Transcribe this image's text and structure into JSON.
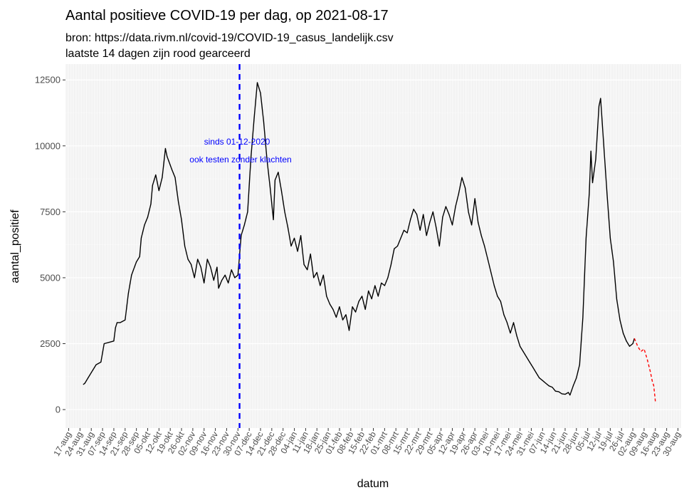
{
  "chart_data": {
    "type": "line",
    "title": "Aantal positieve COVID-19 per dag, op 2021-08-17",
    "subtitle_lines": [
      "bron: https://data.rivm.nl/covid-19/COVID-19_casus_landelijk.csv",
      "laatste 14 dagen zijn rood gearceerd"
    ],
    "xlabel": "datum",
    "ylabel": "aantal_positief",
    "x_range": [
      "2020-08-15",
      "2021-09-01"
    ],
    "ylim": [
      -700,
      13100
    ],
    "y_ticks": [
      0,
      2500,
      5000,
      7500,
      10000,
      12500
    ],
    "y_tick_labels": [
      "0",
      "2500",
      "5000",
      "7500",
      "10000",
      "12500"
    ],
    "x_tick_dates": [
      "2020-08-17",
      "2020-08-24",
      "2020-08-31",
      "2020-09-07",
      "2020-09-14",
      "2020-09-21",
      "2020-09-28",
      "2020-10-05",
      "2020-10-12",
      "2020-10-19",
      "2020-10-26",
      "2020-11-02",
      "2020-11-09",
      "2020-11-16",
      "2020-11-23",
      "2020-11-30",
      "2020-12-07",
      "2020-12-14",
      "2020-12-21",
      "2020-12-28",
      "2021-01-04",
      "2021-01-11",
      "2021-01-18",
      "2021-01-25",
      "2021-02-01",
      "2021-02-08",
      "2021-02-15",
      "2021-02-22",
      "2021-03-01",
      "2021-03-08",
      "2021-03-15",
      "2021-03-22",
      "2021-03-29",
      "2021-04-05",
      "2021-04-12",
      "2021-04-19",
      "2021-04-26",
      "2021-05-03",
      "2021-05-10",
      "2021-05-17",
      "2021-05-24",
      "2021-05-31",
      "2021-06-07",
      "2021-06-14",
      "2021-06-21",
      "2021-06-28",
      "2021-07-05",
      "2021-07-12",
      "2021-07-19",
      "2021-07-26",
      "2021-08-02",
      "2021-08-09",
      "2021-08-16",
      "2021-08-23",
      "2021-08-30"
    ],
    "x_tick_labels": [
      "17-aug",
      "24-aug",
      "31-aug",
      "07-sep",
      "14-sep",
      "21-sep",
      "28-sep",
      "05-okt",
      "12-okt",
      "19-okt",
      "26-okt",
      "02-nov",
      "09-nov",
      "16-nov",
      "23-nov",
      "30-nov",
      "07-dec",
      "14-dec",
      "21-dec",
      "28-dec",
      "04-jan",
      "11-jan",
      "18-jan",
      "25-jan",
      "01-feb",
      "08-feb",
      "15-feb",
      "22-feb",
      "01-mrt",
      "08-mrt",
      "15-mrt",
      "22-mrt",
      "29-mrt",
      "05-apr",
      "12-apr",
      "19-apr",
      "26-apr",
      "03-mei",
      "10-mei",
      "17-mei",
      "24-mei",
      "31-mei",
      "07-jun",
      "14-jun",
      "21-jun",
      "28-jun",
      "05-jul",
      "12-jul",
      "19-jul",
      "26-jul",
      "02-aug",
      "09-aug",
      "16-aug",
      "23-aug",
      "30-aug"
    ],
    "grid": true,
    "vline": {
      "date": "2020-12-01",
      "color": "#0000ff",
      "style": "dashed"
    },
    "annotation": {
      "lines": [
        "sinds 01-12-2020",
        "ook testen zonder klachten"
      ],
      "x": "2020-12-01",
      "y": 10000,
      "color": "#0000ff"
    },
    "series": [
      {
        "color": "#000000",
        "style": "solid",
        "points": [
          [
            "2020-08-26",
            950
          ],
          [
            "2020-08-27",
            1000
          ],
          [
            "2020-08-29",
            1200
          ],
          [
            "2020-09-01",
            1500
          ],
          [
            "2020-09-03",
            1700
          ],
          [
            "2020-09-06",
            1800
          ],
          [
            "2020-09-08",
            2500
          ],
          [
            "2020-09-11",
            2550
          ],
          [
            "2020-09-14",
            2600
          ],
          [
            "2020-09-15",
            3100
          ],
          [
            "2020-09-16",
            3300
          ],
          [
            "2020-09-18",
            3300
          ],
          [
            "2020-09-21",
            3400
          ],
          [
            "2020-09-23",
            4400
          ],
          [
            "2020-09-25",
            5100
          ],
          [
            "2020-09-28",
            5600
          ],
          [
            "2020-09-30",
            5800
          ],
          [
            "2020-10-01",
            6500
          ],
          [
            "2020-10-03",
            7000
          ],
          [
            "2020-10-05",
            7300
          ],
          [
            "2020-10-07",
            7800
          ],
          [
            "2020-10-08",
            8500
          ],
          [
            "2020-10-10",
            8900
          ],
          [
            "2020-10-12",
            8300
          ],
          [
            "2020-10-14",
            8800
          ],
          [
            "2020-10-16",
            9900
          ],
          [
            "2020-10-17",
            9600
          ],
          [
            "2020-10-20",
            9100
          ],
          [
            "2020-10-22",
            8800
          ],
          [
            "2020-10-24",
            7900
          ],
          [
            "2020-10-26",
            7200
          ],
          [
            "2020-10-28",
            6200
          ],
          [
            "2020-10-30",
            5700
          ],
          [
            "2020-11-01",
            5500
          ],
          [
            "2020-11-03",
            5000
          ],
          [
            "2020-11-05",
            5700
          ],
          [
            "2020-11-07",
            5400
          ],
          [
            "2020-11-09",
            4800
          ],
          [
            "2020-11-11",
            5700
          ],
          [
            "2020-11-13",
            5400
          ],
          [
            "2020-11-15",
            4900
          ],
          [
            "2020-11-17",
            5400
          ],
          [
            "2020-11-18",
            4600
          ],
          [
            "2020-11-20",
            4900
          ],
          [
            "2020-11-22",
            5100
          ],
          [
            "2020-11-24",
            4800
          ],
          [
            "2020-11-26",
            5300
          ],
          [
            "2020-11-28",
            5000
          ],
          [
            "2020-11-30",
            5100
          ],
          [
            "2020-12-02",
            6600
          ],
          [
            "2020-12-04",
            7000
          ],
          [
            "2020-12-06",
            7500
          ],
          [
            "2020-12-08",
            9500
          ],
          [
            "2020-12-10",
            11000
          ],
          [
            "2020-12-12",
            12400
          ],
          [
            "2020-12-14",
            12000
          ],
          [
            "2020-12-16",
            10900
          ],
          [
            "2020-12-18",
            9500
          ],
          [
            "2020-12-20",
            8400
          ],
          [
            "2020-12-22",
            7200
          ],
          [
            "2020-12-23",
            8700
          ],
          [
            "2020-12-25",
            9000
          ],
          [
            "2020-12-27",
            8300
          ],
          [
            "2020-12-29",
            7500
          ],
          [
            "2020-12-31",
            6900
          ],
          [
            "2021-01-02",
            6200
          ],
          [
            "2021-01-04",
            6500
          ],
          [
            "2021-01-06",
            6000
          ],
          [
            "2021-01-08",
            6600
          ],
          [
            "2021-01-10",
            5500
          ],
          [
            "2021-01-12",
            5300
          ],
          [
            "2021-01-14",
            5900
          ],
          [
            "2021-01-16",
            5000
          ],
          [
            "2021-01-18",
            5200
          ],
          [
            "2021-01-20",
            4700
          ],
          [
            "2021-01-22",
            5100
          ],
          [
            "2021-01-24",
            4300
          ],
          [
            "2021-01-26",
            4000
          ],
          [
            "2021-01-28",
            3800
          ],
          [
            "2021-01-30",
            3500
          ],
          [
            "2021-02-01",
            3900
          ],
          [
            "2021-02-03",
            3400
          ],
          [
            "2021-02-05",
            3600
          ],
          [
            "2021-02-07",
            3000
          ],
          [
            "2021-02-09",
            3900
          ],
          [
            "2021-02-11",
            3700
          ],
          [
            "2021-02-13",
            4100
          ],
          [
            "2021-02-15",
            4300
          ],
          [
            "2021-02-17",
            3800
          ],
          [
            "2021-02-19",
            4500
          ],
          [
            "2021-02-21",
            4200
          ],
          [
            "2021-02-23",
            4700
          ],
          [
            "2021-02-25",
            4300
          ],
          [
            "2021-02-27",
            4800
          ],
          [
            "2021-03-01",
            4700
          ],
          [
            "2021-03-03",
            5000
          ],
          [
            "2021-03-05",
            5500
          ],
          [
            "2021-03-07",
            6100
          ],
          [
            "2021-03-09",
            6200
          ],
          [
            "2021-03-11",
            6500
          ],
          [
            "2021-03-13",
            6800
          ],
          [
            "2021-03-15",
            6700
          ],
          [
            "2021-03-17",
            7200
          ],
          [
            "2021-03-19",
            7600
          ],
          [
            "2021-03-21",
            7400
          ],
          [
            "2021-03-23",
            6800
          ],
          [
            "2021-03-25",
            7400
          ],
          [
            "2021-03-27",
            6600
          ],
          [
            "2021-03-29",
            7100
          ],
          [
            "2021-03-31",
            7500
          ],
          [
            "2021-04-02",
            6900
          ],
          [
            "2021-04-04",
            6200
          ],
          [
            "2021-04-06",
            7300
          ],
          [
            "2021-04-08",
            7700
          ],
          [
            "2021-04-10",
            7400
          ],
          [
            "2021-04-12",
            7000
          ],
          [
            "2021-04-14",
            7700
          ],
          [
            "2021-04-16",
            8200
          ],
          [
            "2021-04-18",
            8800
          ],
          [
            "2021-04-20",
            8400
          ],
          [
            "2021-04-22",
            7500
          ],
          [
            "2021-04-24",
            7000
          ],
          [
            "2021-04-26",
            8000
          ],
          [
            "2021-04-28",
            7100
          ],
          [
            "2021-04-30",
            6600
          ],
          [
            "2021-05-02",
            6200
          ],
          [
            "2021-05-04",
            5700
          ],
          [
            "2021-05-06",
            5200
          ],
          [
            "2021-05-08",
            4700
          ],
          [
            "2021-05-10",
            4300
          ],
          [
            "2021-05-12",
            4100
          ],
          [
            "2021-05-14",
            3600
          ],
          [
            "2021-05-16",
            3300
          ],
          [
            "2021-05-18",
            2900
          ],
          [
            "2021-05-20",
            3300
          ],
          [
            "2021-05-22",
            2800
          ],
          [
            "2021-05-24",
            2400
          ],
          [
            "2021-05-26",
            2200
          ],
          [
            "2021-05-28",
            2000
          ],
          [
            "2021-05-30",
            1800
          ],
          [
            "2021-06-01",
            1600
          ],
          [
            "2021-06-03",
            1400
          ],
          [
            "2021-06-05",
            1200
          ],
          [
            "2021-06-07",
            1100
          ],
          [
            "2021-06-09",
            1000
          ],
          [
            "2021-06-11",
            900
          ],
          [
            "2021-06-13",
            850
          ],
          [
            "2021-06-15",
            700
          ],
          [
            "2021-06-17",
            680
          ],
          [
            "2021-06-19",
            600
          ],
          [
            "2021-06-21",
            580
          ],
          [
            "2021-06-23",
            650
          ],
          [
            "2021-06-24",
            550
          ],
          [
            "2021-06-26",
            900
          ],
          [
            "2021-06-28",
            1200
          ],
          [
            "2021-06-30",
            1700
          ],
          [
            "2021-07-02",
            3500
          ],
          [
            "2021-07-04",
            6500
          ],
          [
            "2021-07-06",
            8200
          ],
          [
            "2021-07-07",
            9800
          ],
          [
            "2021-07-08",
            8600
          ],
          [
            "2021-07-10",
            9500
          ],
          [
            "2021-07-12",
            11500
          ],
          [
            "2021-07-13",
            11800
          ],
          [
            "2021-07-15",
            10000
          ],
          [
            "2021-07-17",
            8200
          ],
          [
            "2021-07-19",
            6500
          ],
          [
            "2021-07-21",
            5600
          ],
          [
            "2021-07-23",
            4200
          ],
          [
            "2021-07-25",
            3400
          ],
          [
            "2021-07-27",
            2900
          ],
          [
            "2021-07-29",
            2600
          ],
          [
            "2021-07-31",
            2400
          ],
          [
            "2021-08-02",
            2500
          ],
          [
            "2021-08-03",
            2700
          ]
        ]
      },
      {
        "color": "#ff0000",
        "style": "dashed",
        "points": [
          [
            "2021-08-03",
            2700
          ],
          [
            "2021-08-05",
            2400
          ],
          [
            "2021-08-07",
            2200
          ],
          [
            "2021-08-09",
            2300
          ],
          [
            "2021-08-11",
            1900
          ],
          [
            "2021-08-13",
            1400
          ],
          [
            "2021-08-14",
            1100
          ],
          [
            "2021-08-15",
            900
          ],
          [
            "2021-08-16",
            300
          ]
        ]
      }
    ]
  }
}
